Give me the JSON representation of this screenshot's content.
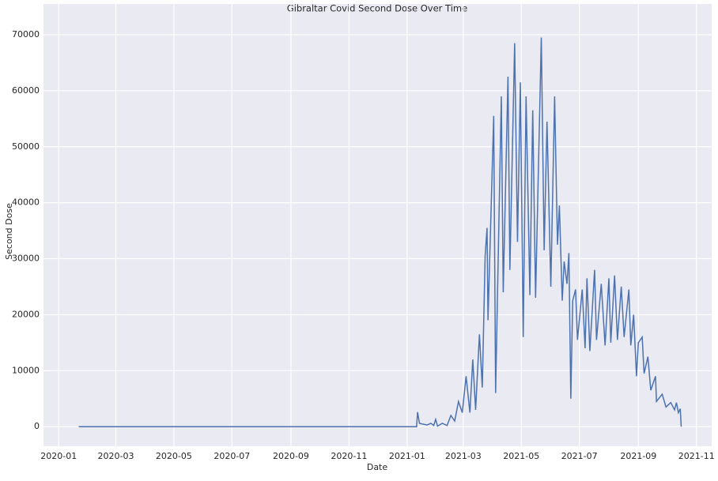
{
  "chart_data": {
    "type": "line",
    "title": "Gibraltar Covid Second Dose Over Time",
    "x_label": "Date",
    "y_label": "Second Dose",
    "x": [
      21,
      376,
      377,
      379,
      387,
      391,
      394,
      396,
      398,
      403,
      408,
      412,
      416,
      420,
      424,
      428,
      432,
      435,
      438,
      442,
      445,
      448,
      450,
      451,
      457,
      459,
      465,
      467,
      472,
      474,
      479,
      482,
      485,
      488,
      491,
      495,
      498,
      501,
      507,
      510,
      513,
      517,
      521,
      524,
      526,
      529,
      531,
      534,
      536,
      538,
      540,
      543,
      545,
      550,
      553,
      555,
      558,
      563,
      565,
      570,
      574,
      578,
      580,
      584,
      587,
      591,
      594,
      599,
      601,
      604,
      607,
      609,
      613,
      615,
      619,
      622,
      627,
      628,
      634,
      638,
      643,
      647,
      649,
      651,
      653,
      654
    ],
    "series": [
      {
        "name": "Second Dose",
        "color": "#4c72b0",
        "values": [
          0,
          0,
          2600,
          600,
          300,
          600,
          200,
          1300,
          100,
          600,
          200,
          2000,
          1000,
          4500,
          2500,
          9000,
          2500,
          12000,
          3000,
          16500,
          7000,
          30500,
          35500,
          19000,
          55500,
          6000,
          59000,
          24000,
          62500,
          28000,
          68500,
          33000,
          61500,
          16000,
          59000,
          23500,
          56500,
          23000,
          69500,
          31500,
          54500,
          25000,
          59000,
          32500,
          39500,
          22500,
          29500,
          25500,
          31000,
          5000,
          22500,
          24500,
          15500,
          24500,
          14000,
          26500,
          13500,
          28000,
          15500,
          25500,
          14500,
          26500,
          15000,
          27000,
          15500,
          25000,
          16000,
          24500,
          14500,
          20000,
          9000,
          15000,
          16000,
          9500,
          12500,
          6500,
          9000,
          4500,
          5800,
          3500,
          4300,
          3000,
          4300,
          2500,
          3200,
          0
        ]
      }
    ],
    "xlim": [
      -16,
      686
    ],
    "xticks": [
      {
        "value": 0,
        "label": "2020-01"
      },
      {
        "value": 60,
        "label": "2020-03"
      },
      {
        "value": 121,
        "label": "2020-05"
      },
      {
        "value": 182,
        "label": "2020-07"
      },
      {
        "value": 244,
        "label": "2020-09"
      },
      {
        "value": 305,
        "label": "2020-11"
      },
      {
        "value": 366,
        "label": "2021-01"
      },
      {
        "value": 425,
        "label": "2021-03"
      },
      {
        "value": 486,
        "label": "2021-05"
      },
      {
        "value": 547,
        "label": "2021-07"
      },
      {
        "value": 609,
        "label": "2021-09"
      },
      {
        "value": 670,
        "label": "2021-11"
      }
    ],
    "ylim": [
      -3500,
      75500
    ],
    "yticks": [
      0,
      10000,
      20000,
      30000,
      40000,
      50000,
      60000,
      70000
    ],
    "grid": true
  }
}
